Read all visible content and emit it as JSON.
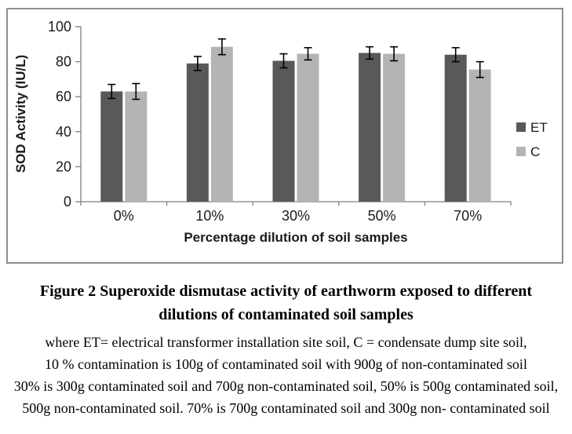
{
  "chart_data": {
    "type": "bar",
    "categories": [
      "0%",
      "10%",
      "30%",
      "50%",
      "70%"
    ],
    "series": [
      {
        "name": "ET",
        "color": "#595959",
        "values": [
          63,
          79,
          80.5,
          85,
          84
        ],
        "errors": [
          4,
          4,
          4,
          3.5,
          4
        ]
      },
      {
        "name": "C",
        "color": "#b4b4b4",
        "values": [
          63,
          88.5,
          84.5,
          84.5,
          75.5
        ],
        "errors": [
          4.5,
          4.5,
          3.5,
          4,
          4.5
        ]
      }
    ],
    "title": "",
    "xlabel": "Percentage dilution of soil samples",
    "ylabel": "SOD Activity (IU/L)",
    "ylim": [
      0,
      100
    ],
    "ytick_step": 20,
    "grid": false,
    "legend_position": "right",
    "error_bars": true
  },
  "caption": {
    "title_line1": "Figure 2 Superoxide dismutase activity of earthworm exposed to different",
    "title_line2": "dilutions of contaminated soil samples",
    "body_lines": [
      "where ET= electrical transformer installation site soil, C = condensate dump site soil,",
      "10 % contamination is 100g of contaminated soil with 900g of non-contaminated soil",
      "30% is 300g contaminated soil and 700g non-contaminated soil, 50% is 500g contaminated soil,",
      "500g non-contaminated soil. 70% is 700g contaminated soil and 300g non- contaminated soil"
    ]
  },
  "colors": {
    "panel_border": "#8f8f8f",
    "axis_line": "#808080",
    "tick_text": "#1a1a1a",
    "error_bar": "#000000"
  }
}
